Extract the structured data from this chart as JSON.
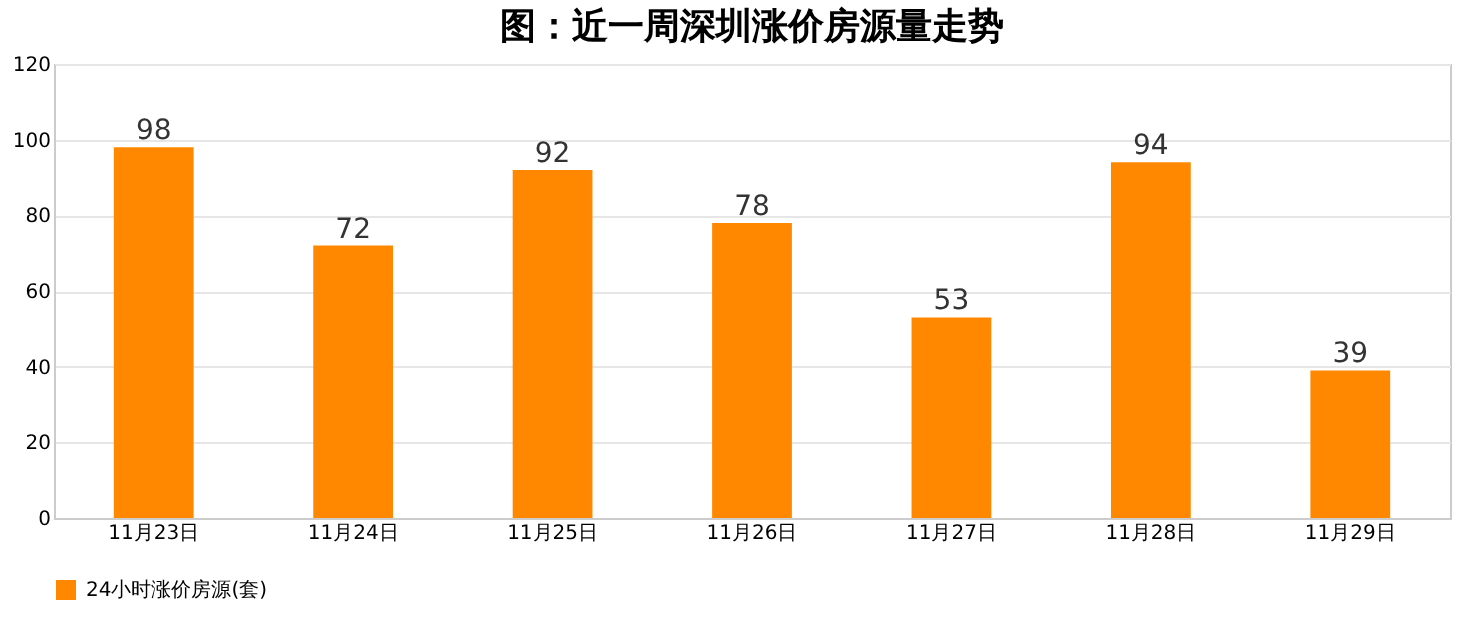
{
  "chart_data": {
    "type": "bar",
    "title": "图：近一周深圳涨价房源量走势",
    "categories": [
      "11月23日",
      "11月24日",
      "11月25日",
      "11月26日",
      "11月27日",
      "11月28日",
      "11月29日"
    ],
    "series": [
      {
        "name": "24小时涨价房源(套)",
        "color": "#ff8800",
        "values": [
          98,
          72,
          92,
          78,
          53,
          94,
          39
        ]
      }
    ],
    "ylim": [
      0,
      120
    ],
    "yticks": [
      0,
      20,
      40,
      60,
      80,
      100,
      120
    ],
    "grid": "y",
    "legend": "bottom",
    "data_labels": true
  }
}
